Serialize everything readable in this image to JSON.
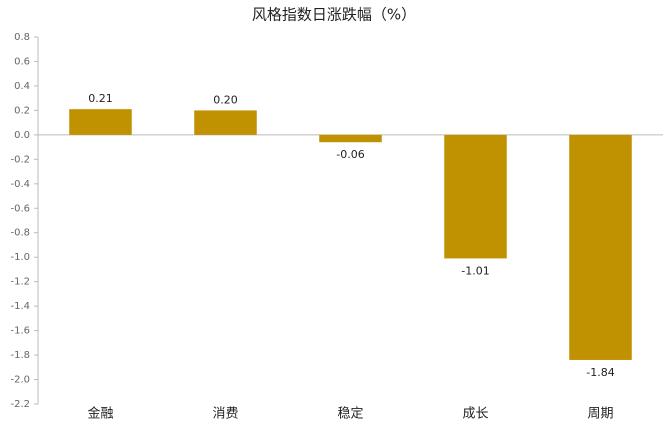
{
  "chart_data": {
    "type": "bar",
    "title": "风格指数日涨跌幅（%）",
    "categories": [
      "金融",
      "消费",
      "稳定",
      "成长",
      "周期"
    ],
    "values": [
      0.21,
      0.2,
      -0.06,
      -1.01,
      -1.84
    ],
    "value_labels": [
      "0.21",
      "0.20",
      "-0.06",
      "-1.01",
      "-1.84"
    ],
    "color": "#c09100",
    "ylim": [
      -2.2,
      0.8
    ],
    "yticks": [
      0.8,
      0.6,
      0.4,
      0.2,
      {
        "value": 0,
        "label": "0.0"
      },
      -0.2,
      -0.4,
      -0.6,
      -0.8,
      {
        "value": -1,
        "label": "-1.0"
      },
      -1.2,
      -1.4,
      -1.6,
      -1.8,
      {
        "value": -2,
        "label": "-2.0"
      },
      -2.2
    ],
    "grid": false
  }
}
